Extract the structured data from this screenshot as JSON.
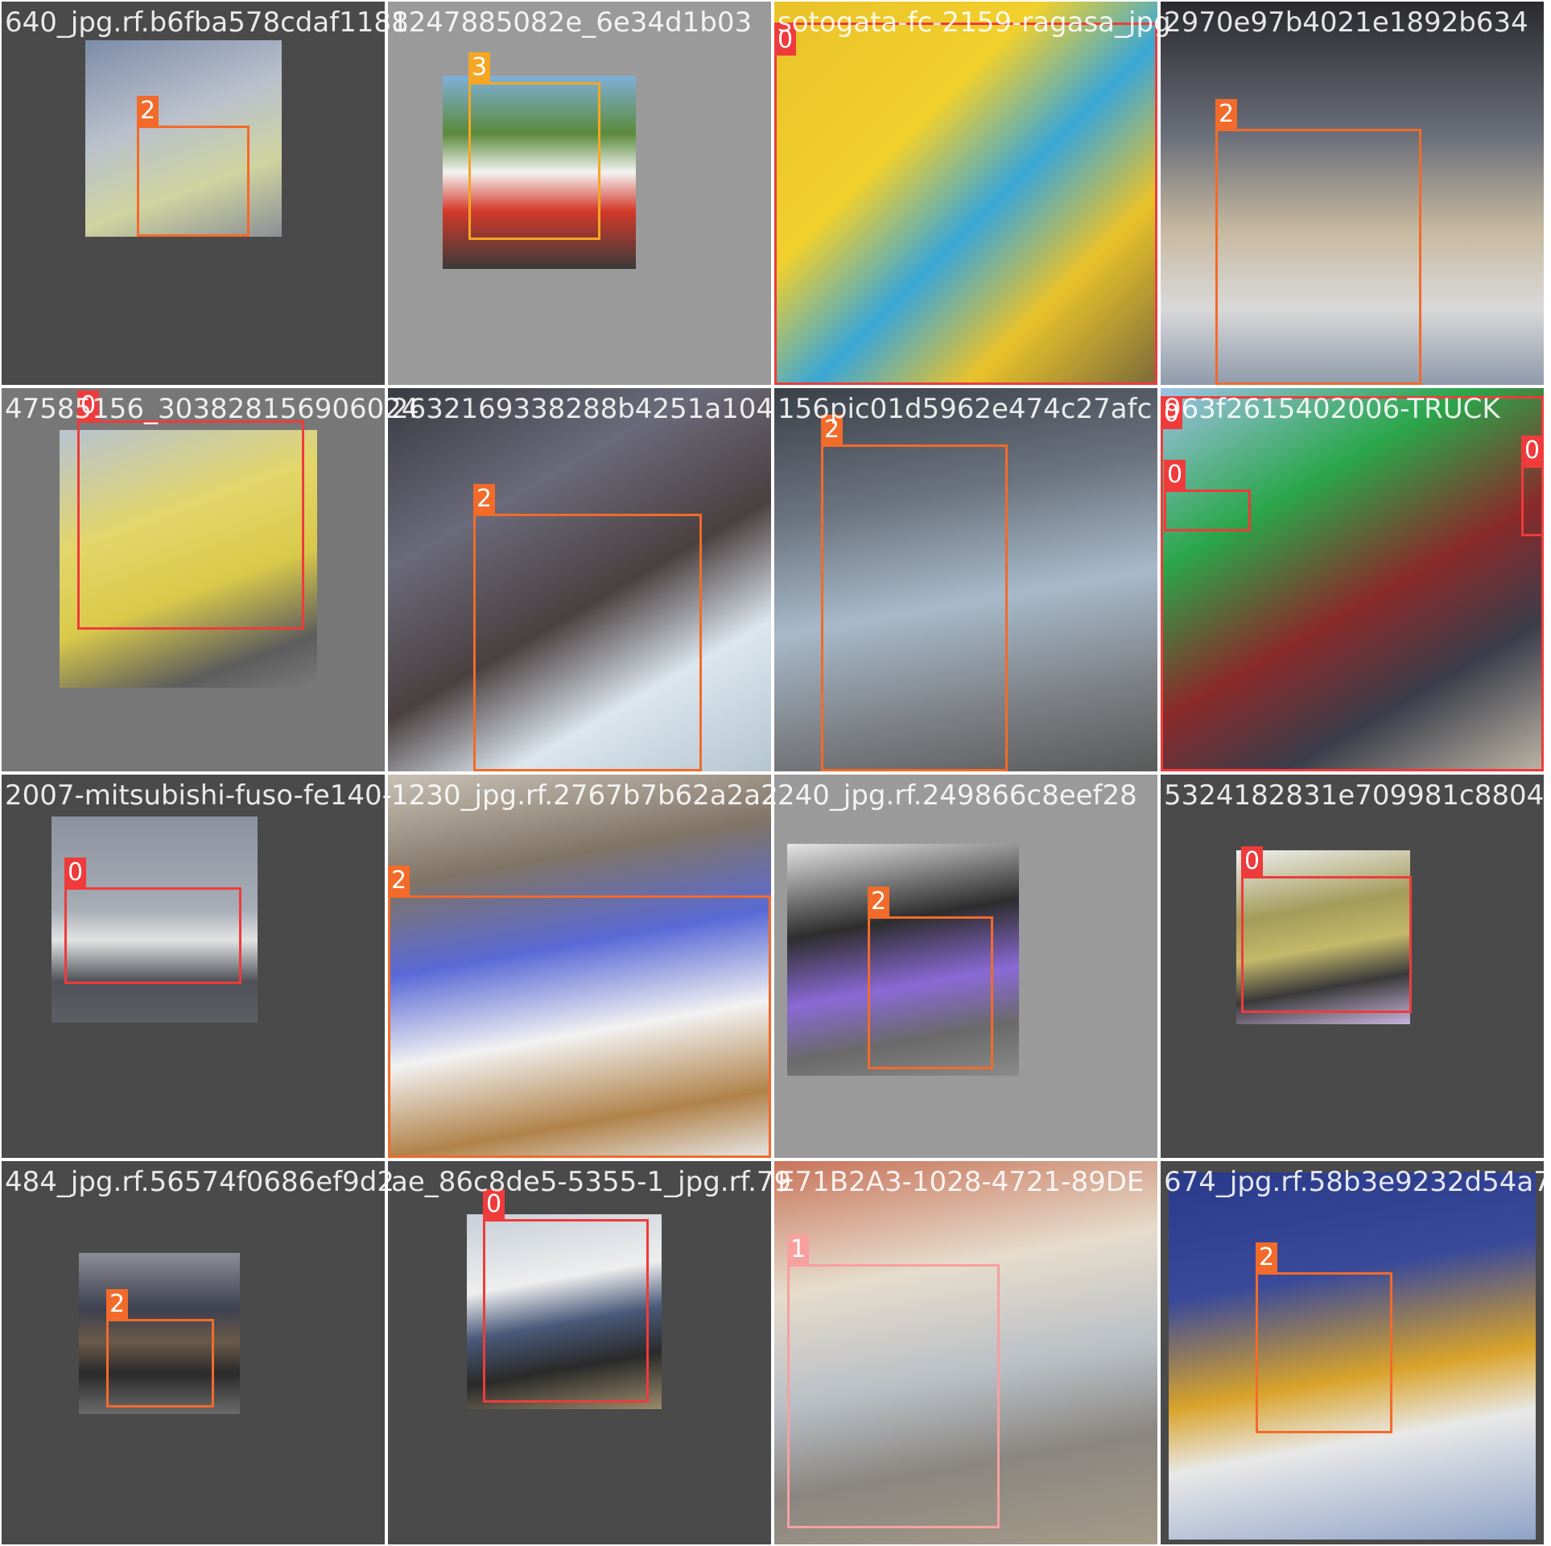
{
  "colors": {
    "0": "#ef3b3b",
    "1": "#f7a0a0",
    "2": "#f26b2a",
    "3": "#f5a623"
  },
  "tiles": [
    {
      "name": "640_jpg.rf.b6fba578cdaf1188",
      "bg": "#4a4a4a",
      "photo": "linear-gradient(160deg,#7d8ca8 0%,#b9c0cc 40%,#cfd4a0 70%,#8b8f96 100%)",
      "boxes": [
        {
          "label": "2"
        }
      ]
    },
    {
      "name": "1247885082e_6e34d1b03",
      "bg": "#9a9a9a",
      "photo": "linear-gradient(180deg,#7fb0d8 0%,#5b8a3a 30%,#f3f3f3 50%,#d43a2a 70%,#3a3a3a 100%)",
      "boxes": [
        {
          "label": "3"
        }
      ]
    },
    {
      "name": "sotogata-fc-2159-ragasa_jpg",
      "bg": "#4a4a4a",
      "photo": "linear-gradient(135deg,#e9c22a 0%,#f1d02c 35%,#3aa7d6 55%,#e9c22a 75%,#7a6a3a 100%)",
      "boxes": [
        {
          "label": "0"
        }
      ]
    },
    {
      "name": "2970e97b4021e1892b634",
      "bg": "#4a4a4a",
      "photo": "linear-gradient(180deg,#2a2a2e 0%,#6b6f7a 35%,#c8b9a0 60%,#d9d9d9 80%,#8f9aab 100%)",
      "boxes": [
        {
          "label": "2"
        }
      ]
    },
    {
      "name": "47585156_303828156906024",
      "bg": "#777777",
      "photo": "linear-gradient(160deg,#b7c3d3 0%,#e3d66a 35%,#d9c94a 60%,#5d5d5d 85%,#7a7a7a 100%)",
      "boxes": [
        {
          "label": "0"
        }
      ]
    },
    {
      "name": "2632169338288b4251a104",
      "bg": "#4a4a4a",
      "photo": "linear-gradient(150deg,#3a3a42 0%,#6b6a7a 30%,#4a4040 55%,#dce6ee 75%,#b5c5cf 100%)",
      "boxes": [
        {
          "label": "2"
        }
      ]
    },
    {
      "name": "156pic01d5962e474c27afc",
      "bg": "#4a4a4a",
      "photo": "linear-gradient(170deg,#3a4048 0%,#6c7480 30%,#a7b9c9 55%,#7c7f84 80%,#5a5a5a 100%)",
      "boxes": [
        {
          "label": "2"
        }
      ]
    },
    {
      "name": "963f2615402006-TRUCK",
      "bg": "#4a4a4a",
      "photo": "linear-gradient(150deg,#9fc2e6 0%,#2aa64a 30%,#8a2a2a 55%,#3a3d4a 75%,#bdb5a5 100%)",
      "boxes": [
        {
          "label": "0"
        },
        {
          "label": "0"
        },
        {
          "label": "0"
        }
      ]
    },
    {
      "name": "2007-mitsubishi-fuso-fe140-",
      "bg": "#4a4a4a",
      "photo": "linear-gradient(180deg,#8a929e 0%,#a7adb6 45%,#e2e2e2 60%,#4f5259 80%,#5c5f66 100%)",
      "boxes": [
        {
          "label": "0"
        }
      ]
    },
    {
      "name": "1230_jpg.rf.2767b7b62a2a2",
      "bg": "#4a4a4a",
      "photo": "linear-gradient(170deg,#c9c0b5 0%,#7f7466 25%,#5a6ad6 45%,#f2f2f2 65%,#b0824a 85%,#e8e8e8 100%)",
      "boxes": [
        {
          "label": "2"
        }
      ]
    },
    {
      "name": "240_jpg.rf.249866c8eef28",
      "bg": "#9a9a9a",
      "photo": "linear-gradient(170deg,#e5e5e5 0%,#2d2d2d 35%,#8a6ad6 60%,#6a6a6a 80%,#8a8a8a 100%)",
      "boxes": [
        {
          "label": "2"
        }
      ]
    },
    {
      "name": "5324182831e709981c8804",
      "bg": "#4a4a4a",
      "photo": "linear-gradient(170deg,#eeeeee 0%,#a39b5a 35%,#c4b86a 55%,#3a3a3a 75%,#c9b4dc 100%)",
      "boxes": [
        {
          "label": "0"
        }
      ]
    },
    {
      "name": "484_jpg.rf.56574f0686ef9d2",
      "bg": "#4a4a4a",
      "photo": "linear-gradient(180deg,#8d8d96 0%,#3d4050 35%,#6a5a4a 55%,#2a2a2a 75%,#6b6b6b 100%)",
      "boxes": [
        {
          "label": "2"
        }
      ]
    },
    {
      "name": "ae_86c8de5-5355-1_jpg.rf.79",
      "bg": "#4a4a4a",
      "photo": "linear-gradient(170deg,#c7cfd8 0%,#eeeeee 35%,#4a5a7a 55%,#2a2a2a 75%,#9a8a6a 100%)",
      "boxes": [
        {
          "label": "0"
        }
      ]
    },
    {
      "name": "E71B2A3-1028-4721-89DE",
      "bg": "#4a4a4a",
      "photo": "linear-gradient(170deg,#c8745a 0%,#e6dccc 30%,#b9bfc6 55%,#8a8680 75%,#a59a88 100%)",
      "boxes": [
        {
          "label": "1"
        }
      ]
    },
    {
      "name": "674_jpg.rf.58b3e9232d54a7",
      "bg": "#4a4a4a",
      "photo": "linear-gradient(170deg,#2a3a8a 0%,#3a4a9a 30%,#d9a32a 55%,#e8e8e8 70%,#8fa3c7 100%)",
      "boxes": [
        {
          "label": "2"
        }
      ]
    }
  ]
}
